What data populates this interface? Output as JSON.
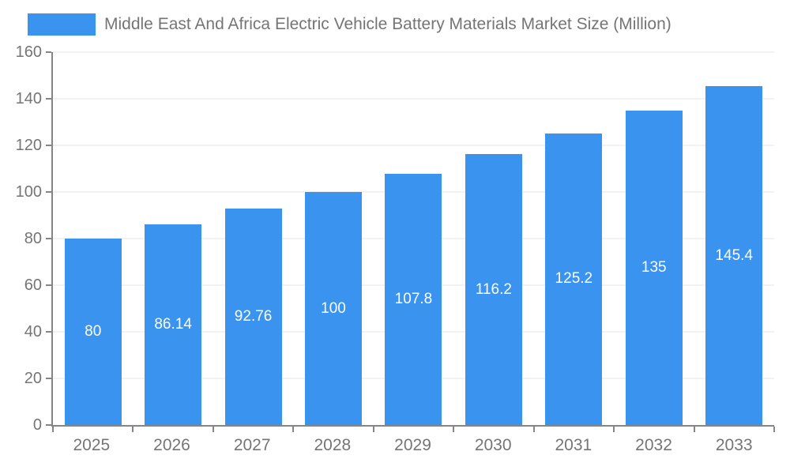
{
  "chart_data": {
    "type": "bar",
    "title": "Middle East And Africa Electric Vehicle Battery Materials Market Size (Million)",
    "categories": [
      "2025",
      "2026",
      "2027",
      "2028",
      "2029",
      "2030",
      "2031",
      "2032",
      "2033"
    ],
    "values": [
      80,
      86.14,
      92.76,
      100,
      107.8,
      116.2,
      125.2,
      135,
      145.4
    ],
    "value_labels": [
      "80",
      "86.14",
      "92.76",
      "100",
      "107.8",
      "116.2",
      "125.2",
      "135",
      "145.4"
    ],
    "xlabel": "",
    "ylabel": "",
    "ylim": [
      0,
      160
    ],
    "yticks": [
      0,
      20,
      40,
      60,
      80,
      100,
      120,
      140,
      160
    ],
    "grid": true,
    "legend_position": "top",
    "bar_color": "#3B93F0",
    "bar_label_color": "#ffffff",
    "axis_text_color": "#757575",
    "grid_color": "#e4e4e4",
    "axis_line_color": "#858585"
  }
}
